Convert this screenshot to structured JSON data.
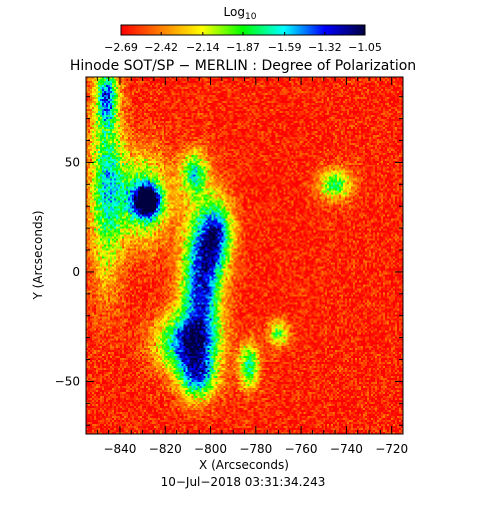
{
  "chart_data": {
    "type": "heatmap",
    "title": "Hinode SOT/SP − MERLIN : Degree of Polarization",
    "timestamp": "10−Jul−2018 03:31:34.243",
    "xlabel": "X (Arcseconds)",
    "ylabel": "Y (Arcseconds)",
    "xlim": [
      -855,
      -715
    ],
    "ylim": [
      -74,
      89
    ],
    "x_ticks": [
      -840,
      -820,
      -800,
      -780,
      -760,
      -740,
      -720
    ],
    "x_tick_labels": [
      "−840",
      "−820",
      "−800",
      "−780",
      "−760",
      "−740",
      "−720"
    ],
    "y_ticks": [
      -50,
      0,
      50
    ],
    "y_tick_labels": [
      "−50",
      "0",
      "50"
    ],
    "colorbar": {
      "label": "Log",
      "label_subscript": "10",
      "scale": "log10",
      "range": [
        -2.69,
        -1.05
      ],
      "ticks": [
        -2.69,
        -2.42,
        -2.14,
        -1.87,
        -1.59,
        -1.32,
        -1.05
      ],
      "tick_labels": [
        "−2.69",
        "−2.42",
        "−2.14",
        "−1.87",
        "−1.59",
        "−1.32",
        "−1.05"
      ],
      "colors": [
        "#ff0000",
        "#ff8000",
        "#ffff00",
        "#00ff00",
        "#00ffff",
        "#0000ff",
        "#000040"
      ]
    },
    "features": {
      "background_level": -2.62,
      "noise": 0.14,
      "blobs": [
        {
          "x": -804,
          "y": -5,
          "sx": 6,
          "sy": 22,
          "amp": 1.35
        },
        {
          "x": -811,
          "y": -32,
          "sx": 9,
          "sy": 9,
          "amp": 1.15
        },
        {
          "x": -797,
          "y": 17,
          "sx": 5,
          "sy": 11,
          "amp": 1.05
        },
        {
          "x": -828,
          "y": 32,
          "sx": 4,
          "sy": 5,
          "amp": 1.55
        },
        {
          "x": -846,
          "y": 42,
          "sx": 5,
          "sy": 32,
          "amp": 0.85
        },
        {
          "x": -831,
          "y": 34,
          "sx": 9,
          "sy": 14,
          "amp": 0.85
        },
        {
          "x": -806,
          "y": -48,
          "sx": 6,
          "sy": 7,
          "amp": 1.0
        },
        {
          "x": -783,
          "y": -43,
          "sx": 3,
          "sy": 7,
          "amp": 0.95
        },
        {
          "x": -807,
          "y": 45,
          "sx": 4,
          "sy": 7,
          "amp": 0.9
        },
        {
          "x": -745,
          "y": 40,
          "sx": 5,
          "sy": 5,
          "amp": 0.8
        },
        {
          "x": -770,
          "y": -28,
          "sx": 3,
          "sy": 4,
          "amp": 0.75
        },
        {
          "x": -846,
          "y": 80,
          "sx": 3,
          "sy": 8,
          "amp": 0.9
        }
      ]
    }
  }
}
